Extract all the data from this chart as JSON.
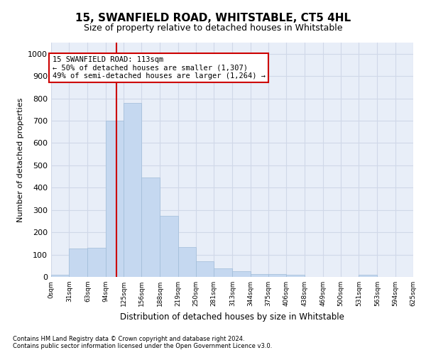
{
  "title": "15, SWANFIELD ROAD, WHITSTABLE, CT5 4HL",
  "subtitle": "Size of property relative to detached houses in Whitstable",
  "xlabel": "Distribution of detached houses by size in Whitstable",
  "ylabel": "Number of detached properties",
  "footnote1": "Contains HM Land Registry data © Crown copyright and database right 2024.",
  "footnote2": "Contains public sector information licensed under the Open Government Licence v3.0.",
  "property_line_x": 113,
  "annotation_text": "15 SWANFIELD ROAD: 113sqm\n← 50% of detached houses are smaller (1,307)\n49% of semi-detached houses are larger (1,264) →",
  "bar_edges": [
    0,
    31,
    63,
    94,
    125,
    156,
    188,
    219,
    250,
    281,
    313,
    344,
    375,
    406,
    438,
    469,
    500,
    531,
    563,
    594,
    625
  ],
  "bar_values": [
    8,
    128,
    130,
    700,
    780,
    445,
    275,
    135,
    70,
    38,
    24,
    12,
    12,
    11,
    0,
    0,
    0,
    8,
    0,
    0
  ],
  "bar_color": "#c5d8f0",
  "bar_edgecolor": "#a0bcd8",
  "line_color": "#cc0000",
  "annotation_box_edgecolor": "#cc0000",
  "annotation_box_facecolor": "#ffffff",
  "grid_color": "#d0d8e8",
  "background_color": "#e8eef8",
  "ylim": [
    0,
    1050
  ],
  "yticks": [
    0,
    100,
    200,
    300,
    400,
    500,
    600,
    700,
    800,
    900,
    1000
  ]
}
